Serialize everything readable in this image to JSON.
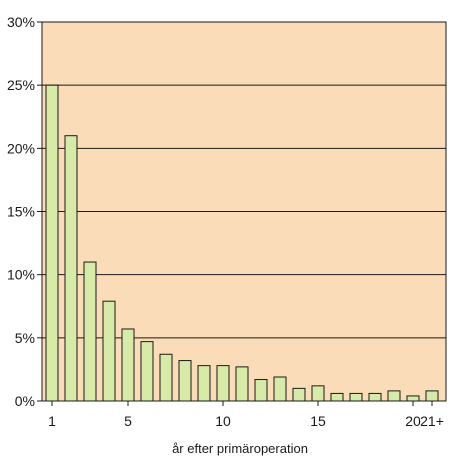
{
  "chart_data": {
    "type": "bar",
    "xlabel": "år efter primäroperation",
    "ylabel": "",
    "ylim": [
      0,
      30
    ],
    "y_ticks": [
      0,
      5,
      10,
      15,
      20,
      25,
      30
    ],
    "y_tick_labels": [
      "0%",
      "5%",
      "10%",
      "15%",
      "20%",
      "25%",
      "30%"
    ],
    "categories": [
      "1",
      "2",
      "3",
      "4",
      "5",
      "6",
      "7",
      "8",
      "9",
      "10",
      "11",
      "12",
      "13",
      "14",
      "15",
      "16",
      "17",
      "18",
      "19",
      "20",
      "21+"
    ],
    "x_tick_labels": {
      "1": "1",
      "5": "5",
      "10": "10",
      "15": "15",
      "20": "20",
      "21+": "21+"
    },
    "values": [
      25,
      21,
      11,
      7.9,
      5.7,
      4.7,
      3.7,
      3.2,
      2.8,
      2.8,
      2.7,
      1.7,
      1.9,
      1.0,
      1.2,
      0.6,
      0.6,
      0.6,
      0.8,
      0.4,
      0.8
    ],
    "grid": true,
    "colors": {
      "plot_background": "#fbdcb8",
      "bar_fill": "#d7eaa8",
      "bar_stroke": "#1a1a1a",
      "grid": "#1a1a1a"
    }
  }
}
